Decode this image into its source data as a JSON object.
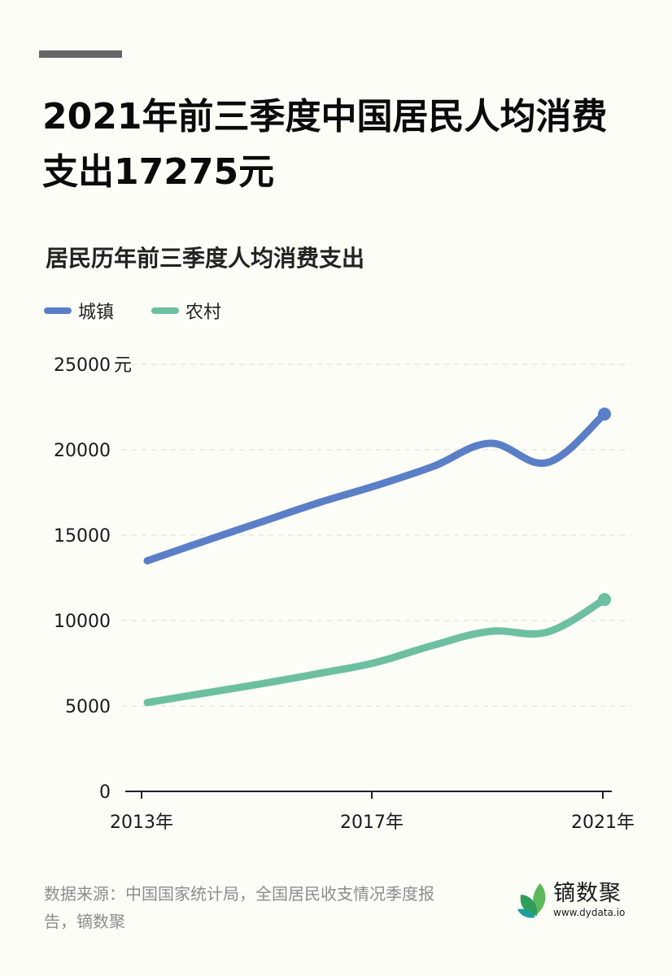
{
  "header": {
    "title": "2021年前三季度中国居民人均消费支出17275元",
    "subtitle": "居民历年前三季度人均消费支出"
  },
  "legend": [
    {
      "label": "城镇",
      "color": "#5b7fc7"
    },
    {
      "label": "农村",
      "color": "#6dbfa2"
    }
  ],
  "axis": {
    "y_ticks": [
      "0",
      "5000",
      "10000",
      "15000",
      "20000",
      "25000"
    ],
    "y_unit": "元",
    "x_ticks": [
      "2013年",
      "2017年",
      "2021年"
    ]
  },
  "chart_data": {
    "type": "line",
    "title": "居民历年前三季度人均消费支出",
    "xlabel": "",
    "ylabel": "元",
    "x": [
      2013,
      2014,
      2015,
      2016,
      2017,
      2018,
      2019,
      2020,
      2021
    ],
    "x_tick_labels": [
      "2013年",
      "2017年",
      "2021年"
    ],
    "ylim": [
      0,
      25000
    ],
    "y_ticks": [
      0,
      5000,
      10000,
      15000,
      20000,
      25000
    ],
    "grid": "horizontal dashed",
    "legend_position": "top-left",
    "series": [
      {
        "name": "城镇",
        "color": "#5b7fc7",
        "values": [
          13500,
          14650,
          15780,
          16900,
          17900,
          19020,
          20380,
          19250,
          22090
        ]
      },
      {
        "name": "农村",
        "color": "#6dbfa2",
        "values": [
          5200,
          5750,
          6300,
          6900,
          7550,
          8550,
          9370,
          9330,
          11230
        ]
      }
    ]
  },
  "footer": {
    "source": "数据来源：中国国家统计局，全国居民收支情况季度报告，镝数聚",
    "logo_name": "镝数聚",
    "logo_url": "www.dydata.io"
  }
}
